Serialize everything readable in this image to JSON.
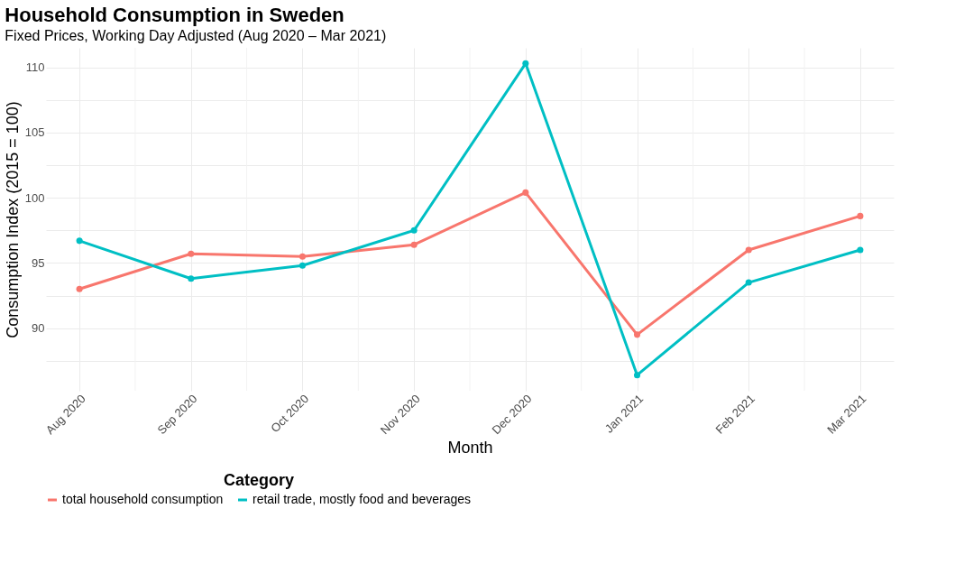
{
  "chart_data": {
    "type": "line",
    "title": "Household Consumption in Sweden",
    "subtitle": "Fixed Prices, Working Day Adjusted (Aug 2020 – Mar 2021)",
    "xlabel": "Month",
    "ylabel": "Consumption Index (2015 = 100)",
    "legend_title": "Category",
    "categories": [
      "Aug 2020",
      "Sep 2020",
      "Oct 2020",
      "Nov 2020",
      "Dec 2020",
      "Jan 2021",
      "Feb 2021",
      "Mar 2021"
    ],
    "series": [
      {
        "name": "total household consumption",
        "color": "#f8766d",
        "values": [
          93.0,
          95.7,
          95.5,
          96.4,
          100.4,
          89.5,
          96.0,
          98.6
        ]
      },
      {
        "name": "retail trade, mostly food and beverages",
        "color": "#00bfc4",
        "values": [
          96.7,
          93.8,
          94.8,
          97.5,
          110.3,
          86.4,
          93.5,
          96.0
        ]
      }
    ],
    "ylim": [
      85.2,
      111.5
    ],
    "yticks": [
      {
        "value": 87.5,
        "label": null
      },
      90,
      {
        "value": 92.5,
        "label": null
      },
      95,
      {
        "value": 97.5,
        "label": null
      },
      100,
      {
        "value": 102.5,
        "label": null
      },
      105,
      {
        "value": 107.5,
        "label": null
      },
      110
    ],
    "grid": true,
    "legend": "bottom",
    "marker": "circle",
    "line_style": "solid"
  }
}
